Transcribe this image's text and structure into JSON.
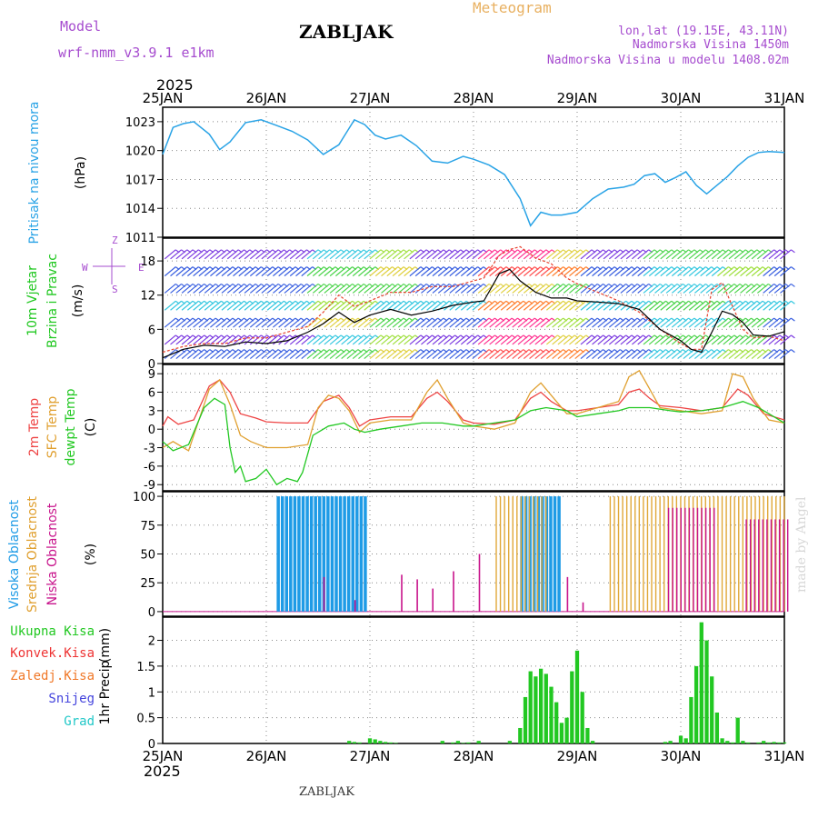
{
  "header": {
    "model_label": "Model",
    "model_name": "wrf-nmm_v3.9.1 e1km",
    "station_title": "ZABLJAK",
    "chart_kind": "Meteogram",
    "coords": "lon,lat (19.15E, 43.11N)",
    "elevation": "Nadmorska Visina 1450m",
    "model_elevation": "Nadmorska Visina u modelu 1408.02m",
    "footer_station": "ZABLJAK",
    "watermark": "made by Angel",
    "year": "2025"
  },
  "colors": {
    "pressure": "#29a3e6",
    "wind_speed": "#000000",
    "wind_gust": "#e8412c",
    "temp_2m": "#ee4444",
    "temp_sfc": "#e0a030",
    "dewpoint": "#22c822",
    "cloud_high": "#1e9be6",
    "cloud_mid": "#e0a838",
    "cloud_low": "#c8148c",
    "precip_total": "#22c822",
    "precip_conv": "#ee3333",
    "precip_frz": "#f07828",
    "snow": "#4444dd",
    "grad": "#22c8c8"
  },
  "chart_data": [
    {
      "type": "line",
      "id": "pressure",
      "ylabel_title": "Pritisak na nivou mora",
      "ylabel_unit": "(hPa)",
      "x_labels": [
        "25JAN",
        "26JAN",
        "27JAN",
        "28JAN",
        "29JAN",
        "30JAN",
        "31JAN"
      ],
      "x_range_days": [
        0,
        6
      ],
      "ylim": [
        1011,
        1024.5
      ],
      "yticks": [
        1011,
        1014,
        1017,
        1020,
        1023
      ],
      "series": [
        {
          "name": "pressure",
          "x": [
            0,
            0.1,
            0.2,
            0.3,
            0.45,
            0.55,
            0.65,
            0.8,
            0.95,
            1.1,
            1.25,
            1.4,
            1.55,
            1.7,
            1.85,
            1.95,
            2.05,
            2.15,
            2.3,
            2.45,
            2.6,
            2.75,
            2.9,
            3.0,
            3.15,
            3.3,
            3.45,
            3.55,
            3.65,
            3.75,
            3.85,
            4.0,
            4.15,
            4.3,
            4.45,
            4.55,
            4.65,
            4.75,
            4.85,
            4.95,
            5.05,
            5.15,
            5.25,
            5.35,
            5.45,
            5.55,
            5.65,
            5.75,
            5.85,
            6.0
          ],
          "y": [
            1019.6,
            1022.4,
            1022.8,
            1023.0,
            1021.7,
            1020.1,
            1020.9,
            1022.9,
            1023.2,
            1022.6,
            1022.0,
            1021.1,
            1019.6,
            1020.6,
            1023.2,
            1022.7,
            1021.6,
            1021.2,
            1021.6,
            1020.5,
            1018.9,
            1018.7,
            1019.4,
            1019.1,
            1018.5,
            1017.5,
            1015.0,
            1012.2,
            1013.6,
            1013.3,
            1013.3,
            1013.6,
            1015.0,
            1016.0,
            1016.2,
            1016.5,
            1017.4,
            1017.6,
            1016.7,
            1017.2,
            1017.8,
            1016.4,
            1015.5,
            1016.4,
            1017.3,
            1018.4,
            1019.3,
            1019.8,
            1019.9,
            1019.8
          ]
        }
      ]
    },
    {
      "type": "line",
      "id": "wind",
      "ylabel_title": "10m Vjetar",
      "ylabel_title2": "Brzina i Pravac",
      "ylabel_unit": "(m/s)",
      "ylim": [
        0,
        22
      ],
      "yticks": [
        0,
        6,
        12,
        18
      ],
      "series": [
        {
          "name": "speed",
          "x": [
            0,
            0.2,
            0.4,
            0.6,
            0.8,
            1.0,
            1.2,
            1.4,
            1.55,
            1.7,
            1.85,
            2.0,
            2.2,
            2.4,
            2.6,
            2.8,
            3.0,
            3.1,
            3.25,
            3.35,
            3.45,
            3.6,
            3.75,
            3.9,
            4.0,
            4.2,
            4.4,
            4.6,
            4.8,
            5.0,
            5.1,
            5.2,
            5.3,
            5.4,
            5.5,
            5.6,
            5.7,
            5.85,
            6.0
          ],
          "y": [
            1.0,
            2.5,
            3.2,
            3.0,
            3.8,
            3.5,
            4.0,
            5.5,
            7.0,
            9.0,
            7.2,
            8.5,
            9.5,
            8.5,
            9.2,
            10.2,
            10.8,
            11.0,
            15.8,
            16.5,
            14.5,
            12.5,
            11.5,
            11.5,
            11.0,
            10.8,
            10.5,
            9.5,
            6.0,
            4.0,
            2.5,
            2.0,
            5.5,
            9.2,
            8.6,
            7.2,
            5.0,
            4.8,
            5.6
          ]
        },
        {
          "name": "gust",
          "x": [
            0,
            0.2,
            0.4,
            0.6,
            0.8,
            1.0,
            1.2,
            1.4,
            1.55,
            1.7,
            1.85,
            2.0,
            2.2,
            2.4,
            2.6,
            2.8,
            3.0,
            3.1,
            3.25,
            3.35,
            3.45,
            3.6,
            3.75,
            3.9,
            4.0,
            4.2,
            4.4,
            4.6,
            4.8,
            5.0,
            5.1,
            5.2,
            5.3,
            5.4,
            5.5,
            5.6,
            5.7,
            5.85,
            6.0
          ],
          "y": [
            2.0,
            3.0,
            3.5,
            3.5,
            4.5,
            4.5,
            5.5,
            6.5,
            9.0,
            12.0,
            10.0,
            11.0,
            12.5,
            12.5,
            13.5,
            13.5,
            14.5,
            15.0,
            19.0,
            20.0,
            20.5,
            18.5,
            17.5,
            15.0,
            14.0,
            12.5,
            11.0,
            9.0,
            6.0,
            3.5,
            2.5,
            2.5,
            13.0,
            14.2,
            10.0,
            6.0,
            4.5,
            4.8,
            4.0
          ]
        }
      ]
    },
    {
      "type": "line",
      "id": "temperature",
      "ylabel_title": "2m Temp",
      "ylabel_title2": "SFC Temp",
      "ylabel_title3": "dewpt Temp",
      "ylabel_unit": "(C)",
      "ylim": [
        -10,
        10.5
      ],
      "yticks": [
        -9,
        -6,
        -3,
        0,
        3,
        6,
        9
      ],
      "series": [
        {
          "name": "2m",
          "x": [
            0,
            0.05,
            0.15,
            0.3,
            0.45,
            0.55,
            0.65,
            0.75,
            0.9,
            1.0,
            1.2,
            1.4,
            1.55,
            1.7,
            1.8,
            1.9,
            2.0,
            2.2,
            2.4,
            2.55,
            2.65,
            2.75,
            2.9,
            3.0,
            3.2,
            3.4,
            3.55,
            3.65,
            3.75,
            3.9,
            4.0,
            4.2,
            4.4,
            4.5,
            4.6,
            4.7,
            4.8,
            5.0,
            5.2,
            5.4,
            5.55,
            5.65,
            5.8,
            6.0
          ],
          "y": [
            0.5,
            2.0,
            0.8,
            1.5,
            7.0,
            8.0,
            6.0,
            2.5,
            1.8,
            1.2,
            1.0,
            1.0,
            4.5,
            5.5,
            3.5,
            0.5,
            1.5,
            2.0,
            2.0,
            5.0,
            6.0,
            4.5,
            1.5,
            1.0,
            0.8,
            1.5,
            5.0,
            6.0,
            4.5,
            3.0,
            3.0,
            3.5,
            4.0,
            6.0,
            6.5,
            5.0,
            3.8,
            3.5,
            3.0,
            3.5,
            6.5,
            5.5,
            2.5,
            1.5
          ]
        },
        {
          "name": "sfc",
          "x": [
            0,
            0.1,
            0.25,
            0.45,
            0.55,
            0.65,
            0.75,
            0.85,
            1.0,
            1.2,
            1.4,
            1.5,
            1.6,
            1.7,
            1.8,
            1.9,
            2.0,
            2.2,
            2.4,
            2.55,
            2.65,
            2.75,
            2.9,
            3.0,
            3.2,
            3.4,
            3.55,
            3.65,
            3.75,
            3.9,
            4.0,
            4.2,
            4.4,
            4.5,
            4.6,
            4.7,
            4.8,
            5.0,
            5.2,
            5.4,
            5.5,
            5.6,
            5.7,
            5.85,
            6.0
          ],
          "y": [
            -3.0,
            -2.0,
            -3.5,
            6.5,
            8.0,
            4.0,
            -1.0,
            -2.0,
            -3.0,
            -3.0,
            -2.5,
            3.5,
            5.5,
            5.0,
            3.0,
            -0.5,
            1.0,
            1.5,
            1.5,
            6.0,
            8.0,
            5.0,
            1.0,
            0.5,
            0.0,
            1.0,
            6.0,
            7.5,
            5.5,
            2.5,
            2.5,
            3.5,
            4.5,
            8.5,
            9.5,
            6.5,
            3.5,
            3.0,
            2.5,
            3.0,
            9.0,
            8.5,
            5.0,
            1.5,
            1.0
          ]
        },
        {
          "name": "dewpt",
          "x": [
            0,
            0.1,
            0.25,
            0.4,
            0.5,
            0.6,
            0.65,
            0.7,
            0.75,
            0.8,
            0.9,
            1.0,
            1.1,
            1.2,
            1.3,
            1.35,
            1.45,
            1.6,
            1.75,
            1.85,
            1.95,
            2.1,
            2.3,
            2.5,
            2.7,
            2.9,
            3.0,
            3.2,
            3.4,
            3.55,
            3.7,
            3.9,
            4.0,
            4.2,
            4.4,
            4.5,
            4.7,
            4.9,
            5.0,
            5.2,
            5.4,
            5.5,
            5.6,
            5.75,
            5.9,
            6.0
          ],
          "y": [
            -2.0,
            -3.5,
            -2.5,
            3.5,
            5.0,
            4.0,
            -3.0,
            -7.0,
            -6.0,
            -8.5,
            -8.0,
            -6.5,
            -9.0,
            -8.0,
            -8.5,
            -7.0,
            -1.0,
            0.5,
            1.0,
            0.0,
            -0.5,
            0.0,
            0.5,
            1.0,
            1.0,
            0.5,
            0.5,
            1.0,
            1.5,
            3.0,
            3.5,
            3.0,
            2.0,
            2.5,
            3.0,
            3.5,
            3.5,
            3.0,
            2.8,
            3.0,
            3.5,
            4.0,
            4.5,
            3.5,
            2.0,
            1.0
          ]
        }
      ]
    },
    {
      "type": "bar",
      "id": "cloud",
      "ylabel_title": "Visoka Oblacnost",
      "ylabel_title2": "Srednja Oblacnost",
      "ylabel_title3": "Niska Oblacnost",
      "ylabel_unit": "(%)",
      "ylim": [
        -4,
        104
      ],
      "yticks": [
        0,
        25,
        50,
        75,
        100
      ],
      "bars": [
        {
          "layer": "high",
          "x_start": 1.1,
          "x_end": 1.95,
          "value": 100
        },
        {
          "layer": "high",
          "x_start": 3.45,
          "x_end": 3.85,
          "value": 100
        },
        {
          "layer": "mid",
          "x_start": 3.2,
          "x_end": 3.7,
          "value": 100
        },
        {
          "layer": "mid",
          "x_start": 4.3,
          "x_end": 6.0,
          "value": 100
        },
        {
          "layer": "low",
          "x_start": 4.85,
          "x_end": 5.3,
          "value": 90
        },
        {
          "layer": "low",
          "x_start": 5.6,
          "x_end": 6.0,
          "value": 80
        }
      ],
      "scattered_low": [
        {
          "x": 1.55,
          "value": 30
        },
        {
          "x": 1.85,
          "value": 10
        },
        {
          "x": 2.3,
          "value": 32
        },
        {
          "x": 2.45,
          "value": 28
        },
        {
          "x": 2.6,
          "value": 20
        },
        {
          "x": 2.8,
          "value": 35
        },
        {
          "x": 3.05,
          "value": 50
        },
        {
          "x": 3.9,
          "value": 30
        },
        {
          "x": 4.05,
          "value": 8
        }
      ]
    },
    {
      "type": "bar",
      "id": "precip",
      "ylabel_title": "1hr Precip",
      "ylabel_unit": "(mm)",
      "ylim": [
        0,
        2.45
      ],
      "yticks": [
        0,
        0.5,
        1,
        1.5,
        2
      ],
      "legend": [
        "Ukupna Kisa",
        "Konvek.Kisa",
        "Zaledj.Kisa",
        "Snijeg",
        "Grad"
      ],
      "x": [
        1.0,
        1.05,
        1.1,
        1.15,
        1.2,
        1.25,
        1.3,
        1.35,
        1.4,
        1.45,
        1.5,
        1.55,
        1.6,
        1.65,
        1.7,
        1.75,
        1.8,
        1.85,
        1.9,
        1.95,
        2.0,
        2.05,
        2.1,
        2.15,
        2.2,
        2.25,
        2.3,
        2.35,
        2.4,
        2.45,
        2.5,
        2.55,
        2.6,
        2.65,
        2.7,
        2.75,
        2.8,
        2.85,
        2.9,
        2.95,
        3.0,
        3.05,
        3.1,
        3.15,
        3.2,
        3.25,
        3.3,
        3.35,
        3.4,
        3.45,
        3.5,
        3.55,
        3.6,
        3.65,
        3.7,
        3.75,
        3.8,
        3.85,
        3.9,
        3.95,
        4.0,
        4.05,
        4.1,
        4.15,
        4.2,
        4.25,
        4.3,
        4.35,
        4.4,
        4.45,
        4.5,
        4.55,
        4.6,
        4.65,
        4.7,
        4.75,
        4.8,
        4.85,
        4.9,
        4.95,
        5.0,
        5.05,
        5.1,
        5.15,
        5.2,
        5.25,
        5.3,
        5.35,
        5.4,
        5.45,
        5.5,
        5.55,
        5.6,
        5.65,
        5.7,
        5.75,
        5.8,
        5.85,
        5.9,
        5.95,
        6.0
      ],
      "values": [
        0,
        0,
        0,
        0,
        0,
        0,
        0,
        0,
        0,
        0,
        0,
        0,
        0,
        0,
        0,
        0,
        0.05,
        0.03,
        0.02,
        0,
        0.1,
        0.08,
        0.05,
        0.03,
        0.02,
        0.01,
        0,
        0,
        0,
        0,
        0,
        0,
        0,
        0,
        0.05,
        0,
        0.02,
        0.05,
        0.01,
        0.02,
        0,
        0.05,
        0,
        0,
        0,
        0,
        0,
        0.05,
        0,
        0.3,
        0.9,
        1.4,
        1.3,
        1.45,
        1.35,
        1.1,
        0.8,
        0.4,
        0.5,
        1.4,
        1.8,
        1.0,
        0.3,
        0.05,
        0,
        0,
        0,
        0,
        0,
        0,
        0,
        0,
        0,
        0,
        0,
        0,
        0,
        0.03,
        0.05,
        0,
        0.15,
        0.1,
        0.9,
        1.5,
        2.35,
        2.0,
        1.3,
        0.6,
        0.1,
        0.05,
        0.02,
        0.5,
        0.05,
        0.02,
        0,
        0.02,
        0.05,
        0.02,
        0.03,
        0.02,
        0.02
      ]
    }
  ]
}
